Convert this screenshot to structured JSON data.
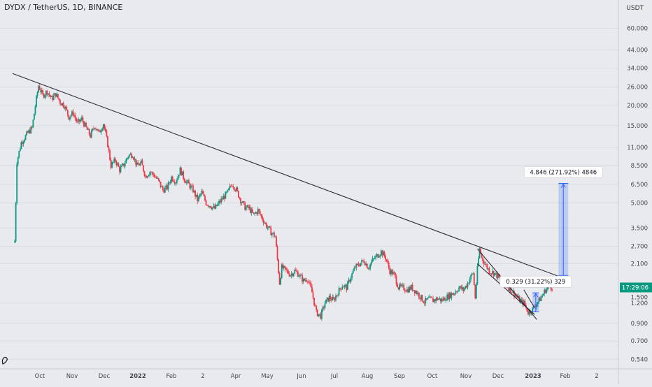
{
  "header": {
    "title": "DYDX / TetherUS, 1D, BINANCE"
  },
  "price_axis": {
    "unit": "USDT",
    "ticks": [
      {
        "label": "60.000",
        "v": 60
      },
      {
        "label": "44.000",
        "v": 44
      },
      {
        "label": "34.000",
        "v": 34
      },
      {
        "label": "26.000",
        "v": 26
      },
      {
        "label": "20.000",
        "v": 20
      },
      {
        "label": "15.000",
        "v": 15
      },
      {
        "label": "11.000",
        "v": 11
      },
      {
        "label": "8.500",
        "v": 8.5
      },
      {
        "label": "6.500",
        "v": 6.5
      },
      {
        "label": "5.000",
        "v": 5
      },
      {
        "label": "3.500",
        "v": 3.5
      },
      {
        "label": "2.700",
        "v": 2.7
      },
      {
        "label": "2.100",
        "v": 2.1
      },
      {
        "label": "1.200",
        "v": 1.2
      },
      {
        "label": "0.900",
        "v": 0.9
      },
      {
        "label": "0.700",
        "v": 0.7
      },
      {
        "label": "0.540",
        "v": 0.54
      }
    ],
    "last_price_tag": "17:29:06",
    "last_price_label": "1.500",
    "last_price": 1.5,
    "tag_color": "#089981"
  },
  "time_axis": {
    "labels": [
      "Oct",
      "Nov",
      "Dec",
      "2022",
      "Feb",
      "2",
      "Apr",
      "May",
      "Jun",
      "Jul",
      "Aug",
      "Sep",
      "Oct",
      "Nov",
      "Dec",
      "2023",
      "Feb",
      "2"
    ],
    "bold": [
      "2022",
      "2023"
    ]
  },
  "chart_data": {
    "type": "candlestick",
    "title": "DYDX / TetherUS, 1D, BINANCE",
    "yscale": "log",
    "ylim": [
      0.5,
      75
    ],
    "series": [
      {
        "values": [
          [
            "2021-09-08",
            2.9
          ],
          [
            "2021-09-10",
            9.0
          ],
          [
            "2021-09-14",
            11.8
          ],
          [
            "2021-09-20",
            13.5
          ],
          [
            "2021-09-24",
            14.5
          ],
          [
            "2021-09-28",
            22.0
          ],
          [
            "2021-09-30",
            26.5
          ],
          [
            "2021-10-04",
            23.0
          ],
          [
            "2021-10-08",
            24.5
          ],
          [
            "2021-10-12",
            22.0
          ],
          [
            "2021-10-16",
            23.5
          ],
          [
            "2021-10-20",
            21.0
          ],
          [
            "2021-10-24",
            20.0
          ],
          [
            "2021-10-28",
            17.0
          ],
          [
            "2021-11-01",
            18.0
          ],
          [
            "2021-11-05",
            15.5
          ],
          [
            "2021-11-09",
            16.5
          ],
          [
            "2021-11-13",
            14.5
          ],
          [
            "2021-11-17",
            13.0
          ],
          [
            "2021-11-21",
            15.0
          ],
          [
            "2021-11-25",
            13.5
          ],
          [
            "2021-11-29",
            15.5
          ],
          [
            "2021-12-03",
            11.5
          ],
          [
            "2021-12-06",
            8.5
          ],
          [
            "2021-12-10",
            9.2
          ],
          [
            "2021-12-14",
            8.0
          ],
          [
            "2021-12-18",
            8.6
          ],
          [
            "2021-12-22",
            9.8
          ],
          [
            "2021-12-26",
            10.0
          ],
          [
            "2021-12-30",
            8.5
          ],
          [
            "2022-01-03",
            8.8
          ],
          [
            "2022-01-07",
            7.3
          ],
          [
            "2022-01-11",
            7.8
          ],
          [
            "2022-01-15",
            7.4
          ],
          [
            "2022-01-19",
            6.8
          ],
          [
            "2022-01-23",
            6.0
          ],
          [
            "2022-01-27",
            6.2
          ],
          [
            "2022-01-31",
            7.2
          ],
          [
            "2022-02-04",
            6.8
          ],
          [
            "2022-02-08",
            8.0
          ],
          [
            "2022-02-12",
            7.0
          ],
          [
            "2022-02-16",
            6.5
          ],
          [
            "2022-02-20",
            6.0
          ],
          [
            "2022-02-24",
            5.2
          ],
          [
            "2022-02-28",
            5.8
          ],
          [
            "2022-03-04",
            5.0
          ],
          [
            "2022-03-08",
            4.8
          ],
          [
            "2022-03-12",
            4.6
          ],
          [
            "2022-03-16",
            5.0
          ],
          [
            "2022-03-20",
            5.4
          ],
          [
            "2022-03-24",
            5.8
          ],
          [
            "2022-03-28",
            6.6
          ],
          [
            "2022-04-01",
            6.0
          ],
          [
            "2022-04-05",
            5.2
          ],
          [
            "2022-04-09",
            4.7
          ],
          [
            "2022-04-13",
            4.6
          ],
          [
            "2022-04-17",
            4.2
          ],
          [
            "2022-04-21",
            4.5
          ],
          [
            "2022-04-25",
            4.0
          ],
          [
            "2022-04-29",
            3.6
          ],
          [
            "2022-05-03",
            3.3
          ],
          [
            "2022-05-07",
            3.1
          ],
          [
            "2022-05-11",
            1.6
          ],
          [
            "2022-05-13",
            2.0
          ],
          [
            "2022-05-17",
            1.9
          ],
          [
            "2022-05-21",
            1.8
          ],
          [
            "2022-05-25",
            1.9
          ],
          [
            "2022-05-29",
            1.8
          ],
          [
            "2022-06-02",
            1.65
          ],
          [
            "2022-06-06",
            1.7
          ],
          [
            "2022-06-10",
            1.4
          ],
          [
            "2022-06-14",
            1.05
          ],
          [
            "2022-06-18",
            1.0
          ],
          [
            "2022-06-22",
            1.2
          ],
          [
            "2022-06-26",
            1.3
          ],
          [
            "2022-06-30",
            1.25
          ],
          [
            "2022-07-04",
            1.4
          ],
          [
            "2022-07-08",
            1.55
          ],
          [
            "2022-07-12",
            1.5
          ],
          [
            "2022-07-16",
            1.75
          ],
          [
            "2022-07-20",
            2.0
          ],
          [
            "2022-07-24",
            2.1
          ],
          [
            "2022-07-28",
            2.2
          ],
          [
            "2022-08-01",
            2.0
          ],
          [
            "2022-08-05",
            2.2
          ],
          [
            "2022-08-09",
            2.35
          ],
          [
            "2022-08-13",
            2.5
          ],
          [
            "2022-08-17",
            2.3
          ],
          [
            "2022-08-21",
            1.9
          ],
          [
            "2022-08-25",
            1.8
          ],
          [
            "2022-08-29",
            1.5
          ],
          [
            "2022-09-02",
            1.5
          ],
          [
            "2022-09-06",
            1.45
          ],
          [
            "2022-09-10",
            1.5
          ],
          [
            "2022-09-14",
            1.42
          ],
          [
            "2022-09-18",
            1.32
          ],
          [
            "2022-09-22",
            1.22
          ],
          [
            "2022-09-26",
            1.27
          ],
          [
            "2022-09-30",
            1.25
          ],
          [
            "2022-10-04",
            1.28
          ],
          [
            "2022-10-08",
            1.25
          ],
          [
            "2022-10-12",
            1.3
          ],
          [
            "2022-10-16",
            1.35
          ],
          [
            "2022-10-20",
            1.4
          ],
          [
            "2022-10-24",
            1.5
          ],
          [
            "2022-10-28",
            1.45
          ],
          [
            "2022-10-31",
            1.55
          ],
          [
            "2022-11-03",
            1.7
          ],
          [
            "2022-11-06",
            1.85
          ],
          [
            "2022-11-08",
            1.3
          ],
          [
            "2022-11-10",
            1.95
          ],
          [
            "2022-11-12",
            2.6
          ],
          [
            "2022-11-14",
            2.3
          ],
          [
            "2022-11-17",
            2.1
          ],
          [
            "2022-11-21",
            1.9
          ],
          [
            "2022-11-25",
            1.85
          ],
          [
            "2022-11-29",
            1.75
          ],
          [
            "2022-12-03",
            1.6
          ],
          [
            "2022-12-07",
            1.55
          ],
          [
            "2022-12-11",
            1.45
          ],
          [
            "2022-12-15",
            1.35
          ],
          [
            "2022-12-19",
            1.25
          ],
          [
            "2022-12-23",
            1.2
          ],
          [
            "2022-12-27",
            1.05
          ],
          [
            "2022-12-31",
            1.1
          ],
          [
            "2023-01-04",
            1.2
          ],
          [
            "2023-01-08",
            1.3
          ],
          [
            "2023-01-12",
            1.45
          ],
          [
            "2023-01-16",
            1.55
          ],
          [
            "2023-01-18",
            1.5
          ]
        ]
      }
    ],
    "annotations": [
      {
        "type": "trendline",
        "from": [
          "2021-09-06",
          31.5
        ],
        "to": [
          "2023-01-30",
          1.7
        ],
        "color": "#2a2e39"
      },
      {
        "type": "trendline",
        "from": [
          "2022-11-10",
          2.6
        ],
        "to": [
          "2023-01-04",
          0.95
        ],
        "color": "#2a2e39"
      },
      {
        "type": "trendline",
        "from": [
          "2022-11-10",
          2.1
        ],
        "to": [
          "2023-01-02",
          1.02
        ],
        "color": "#2a2e39"
      },
      {
        "type": "trendline",
        "from": [
          "2022-12-23",
          1.45
        ],
        "to": [
          "2023-01-02",
          1.12
        ],
        "color": "#2a2e39"
      },
      {
        "type": "measure",
        "label": "4.846 (271.92%) 4846",
        "from": [
          "2023-01-24",
          1.78
        ],
        "to": [
          "2023-02-02",
          6.6
        ],
        "color": "#2962ff"
      },
      {
        "type": "measure",
        "label": "0.329 (31.22%) 329",
        "from": [
          "2022-12-31",
          1.06
        ],
        "to": [
          "2023-01-06",
          1.39
        ],
        "color": "#2962ff"
      }
    ],
    "colors": {
      "up": "#089981",
      "down": "#f23645",
      "background": "#e9eaee",
      "grid": "#d5d7dc"
    },
    "grid": true
  }
}
